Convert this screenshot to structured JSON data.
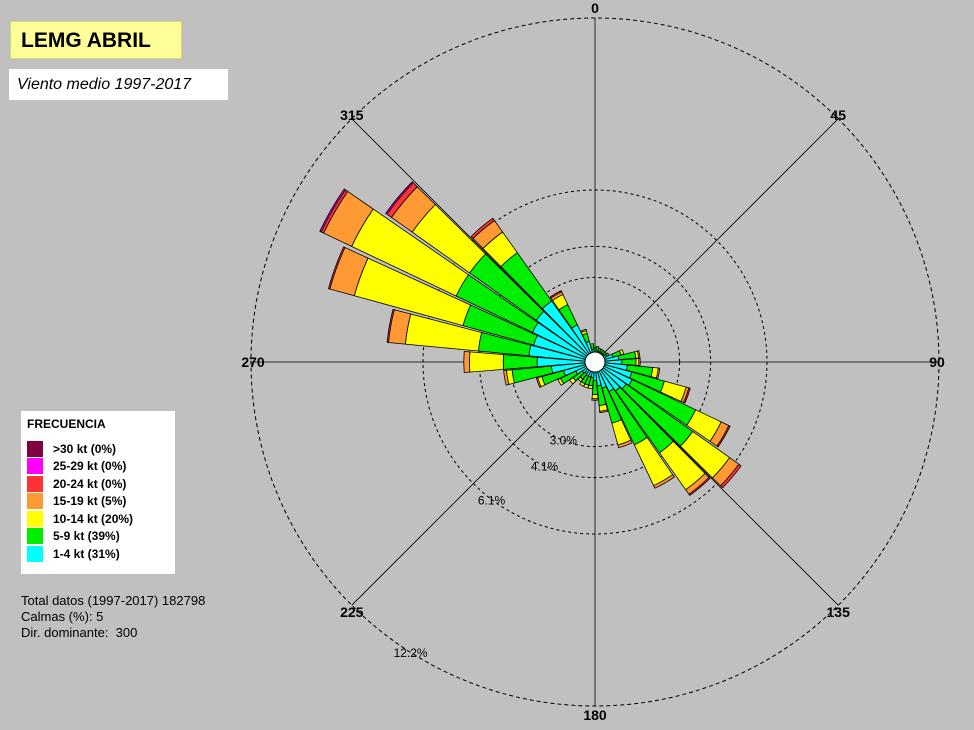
{
  "header": {
    "title": "LEMG ABRIL",
    "subtitle": "Viento medio 1997-2017"
  },
  "legend": {
    "title": "FRECUENCIA",
    "items": [
      {
        "label": ">30 kt (0%)",
        "color": "#800040"
      },
      {
        "label": "25-29 kt (0%)",
        "color": "#ff00ff"
      },
      {
        "label": "20-24 kt (0%)",
        "color": "#ff3333"
      },
      {
        "label": "15-19 kt (5%)",
        "color": "#ff9933"
      },
      {
        "label": "10-14 kt (20%)",
        "color": "#ffff00"
      },
      {
        "label": "5-9 kt (39%)",
        "color": "#00ee00"
      },
      {
        "label": "1-4 kt (31%)",
        "color": "#00ffff"
      }
    ]
  },
  "stats": {
    "total": "Total datos (1997-2017) 182798",
    "calms": "Calmas (%): 5",
    "dominant": "Dir. dominante:  300"
  },
  "chart_data": {
    "type": "wind-rose",
    "direction_labels": [
      {
        "angle": 0,
        "label": "0"
      },
      {
        "angle": 45,
        "label": "45"
      },
      {
        "angle": 90,
        "label": "90"
      },
      {
        "angle": 135,
        "label": "135"
      },
      {
        "angle": 180,
        "label": "180"
      },
      {
        "angle": 225,
        "label": "225"
      },
      {
        "angle": 270,
        "label": "270"
      },
      {
        "angle": 315,
        "label": "315"
      }
    ],
    "rings": [
      {
        "value": 3.0,
        "label": "3.0%"
      },
      {
        "value": 4.1,
        "label": "4.1%"
      },
      {
        "value": 6.1,
        "label": "6.1%"
      },
      {
        "value": 12.2,
        "label": "12.2%"
      }
    ],
    "outer_ring": 12.2,
    "calm_percent": 5,
    "speed_classes": [
      "1-4 kt",
      "5-9 kt",
      "10-14 kt",
      "15-19 kt",
      "20-24 kt",
      "25-29 kt",
      ">30 kt"
    ],
    "colors": [
      "#00ffff",
      "#00ee00",
      "#ffff00",
      "#ff9933",
      "#ff3333",
      "#ff00ff",
      "#800040"
    ],
    "sectors": [
      {
        "dir": 0,
        "values": [
          0.0,
          0.15,
          0.0,
          0.0,
          0.0,
          0.0,
          0.0
        ]
      },
      {
        "dir": 10,
        "values": [
          0.05,
          0.15,
          0.0,
          0.0,
          0.0,
          0.0,
          0.0
        ]
      },
      {
        "dir": 20,
        "values": [
          0.05,
          0.1,
          0.0,
          0.0,
          0.0,
          0.0,
          0.0
        ]
      },
      {
        "dir": 30,
        "values": [
          0.05,
          0.1,
          0.0,
          0.0,
          0.0,
          0.0,
          0.0
        ]
      },
      {
        "dir": 40,
        "values": [
          0.05,
          0.1,
          0.0,
          0.0,
          0.0,
          0.0,
          0.0
        ]
      },
      {
        "dir": 50,
        "values": [
          0.05,
          0.1,
          0.0,
          0.0,
          0.0,
          0.0,
          0.0
        ]
      },
      {
        "dir": 60,
        "values": [
          0.1,
          0.1,
          0.0,
          0.0,
          0.0,
          0.0,
          0.0
        ]
      },
      {
        "dir": 70,
        "values": [
          0.3,
          0.3,
          0.1,
          0.0,
          0.0,
          0.0,
          0.0
        ]
      },
      {
        "dir": 80,
        "values": [
          0.5,
          0.6,
          0.1,
          0.05,
          0.0,
          0.0,
          0.0
        ]
      },
      {
        "dir": 90,
        "values": [
          0.6,
          0.5,
          0.1,
          0.05,
          0.0,
          0.0,
          0.0
        ]
      },
      {
        "dir": 100,
        "values": [
          0.8,
          0.9,
          0.2,
          0.05,
          0.0,
          0.0,
          0.0
        ]
      },
      {
        "dir": 110,
        "values": [
          1.0,
          1.2,
          0.8,
          0.1,
          0.05,
          0.0,
          0.0
        ]
      },
      {
        "dir": 120,
        "values": [
          1.1,
          2.5,
          1.0,
          0.3,
          0.05,
          0.0,
          0.0
        ]
      },
      {
        "dir": 130,
        "values": [
          1.0,
          2.9,
          1.6,
          0.4,
          0.1,
          0.0,
          0.0
        ]
      },
      {
        "dir": 140,
        "values": [
          0.9,
          2.7,
          1.6,
          0.2,
          0.05,
          0.0,
          0.0
        ]
      },
      {
        "dir": 150,
        "values": [
          0.8,
          2.1,
          1.6,
          0.1,
          0.0,
          0.0,
          0.0
        ]
      },
      {
        "dir": 160,
        "values": [
          0.6,
          1.3,
          0.8,
          0.1,
          0.0,
          0.0,
          0.0
        ]
      },
      {
        "dir": 170,
        "values": [
          0.5,
          0.7,
          0.2,
          0.05,
          0.0,
          0.0,
          0.0
        ]
      },
      {
        "dir": 180,
        "values": [
          0.3,
          0.5,
          0.15,
          0.05,
          0.0,
          0.0,
          0.0
        ]
      },
      {
        "dir": 190,
        "values": [
          0.2,
          0.3,
          0.1,
          0.0,
          0.0,
          0.0,
          0.0
        ]
      },
      {
        "dir": 200,
        "values": [
          0.2,
          0.3,
          0.1,
          0.0,
          0.0,
          0.0,
          0.0
        ]
      },
      {
        "dir": 210,
        "values": [
          0.2,
          0.3,
          0.1,
          0.0,
          0.0,
          0.0,
          0.0
        ]
      },
      {
        "dir": 220,
        "values": [
          0.15,
          0.25,
          0.1,
          0.0,
          0.0,
          0.0,
          0.0
        ]
      },
      {
        "dir": 230,
        "values": [
          0.2,
          0.4,
          0.15,
          0.0,
          0.0,
          0.0,
          0.0
        ]
      },
      {
        "dir": 240,
        "values": [
          0.4,
          0.6,
          0.1,
          0.0,
          0.0,
          0.0,
          0.0
        ]
      },
      {
        "dir": 250,
        "values": [
          0.8,
          0.8,
          0.15,
          0.05,
          0.0,
          0.0,
          0.0
        ]
      },
      {
        "dir": 260,
        "values": [
          1.2,
          1.4,
          0.2,
          0.1,
          0.0,
          0.0,
          0.0
        ]
      },
      {
        "dir": 270,
        "values": [
          1.7,
          1.2,
          1.2,
          0.2,
          0.0,
          0.0,
          0.0
        ]
      },
      {
        "dir": 280,
        "values": [
          2.0,
          1.8,
          2.6,
          0.6,
          0.05,
          0.0,
          0.0
        ]
      },
      {
        "dir": 290,
        "values": [
          1.9,
          2.6,
          4.0,
          0.9,
          0.05,
          0.0,
          0.0
        ]
      },
      {
        "dir": 300,
        "values": [
          2.1,
          3.0,
          4.1,
          1.1,
          0.1,
          0.05,
          0.0
        ]
      },
      {
        "dir": 310,
        "values": [
          2.2,
          2.9,
          2.5,
          0.9,
          0.2,
          0.05,
          0.0
        ]
      },
      {
        "dir": 320,
        "values": [
          2.3,
          2.1,
          0.9,
          0.5,
          0.1,
          0.0,
          0.0
        ]
      },
      {
        "dir": 330,
        "values": [
          1.1,
          0.8,
          0.4,
          0.1,
          0.05,
          0.0,
          0.0
        ]
      },
      {
        "dir": 340,
        "values": [
          0.4,
          0.3,
          0.1,
          0.05,
          0.0,
          0.0,
          0.0
        ]
      },
      {
        "dir": 350,
        "values": [
          0.1,
          0.2,
          0.0,
          0.0,
          0.0,
          0.0,
          0.0
        ]
      }
    ]
  }
}
